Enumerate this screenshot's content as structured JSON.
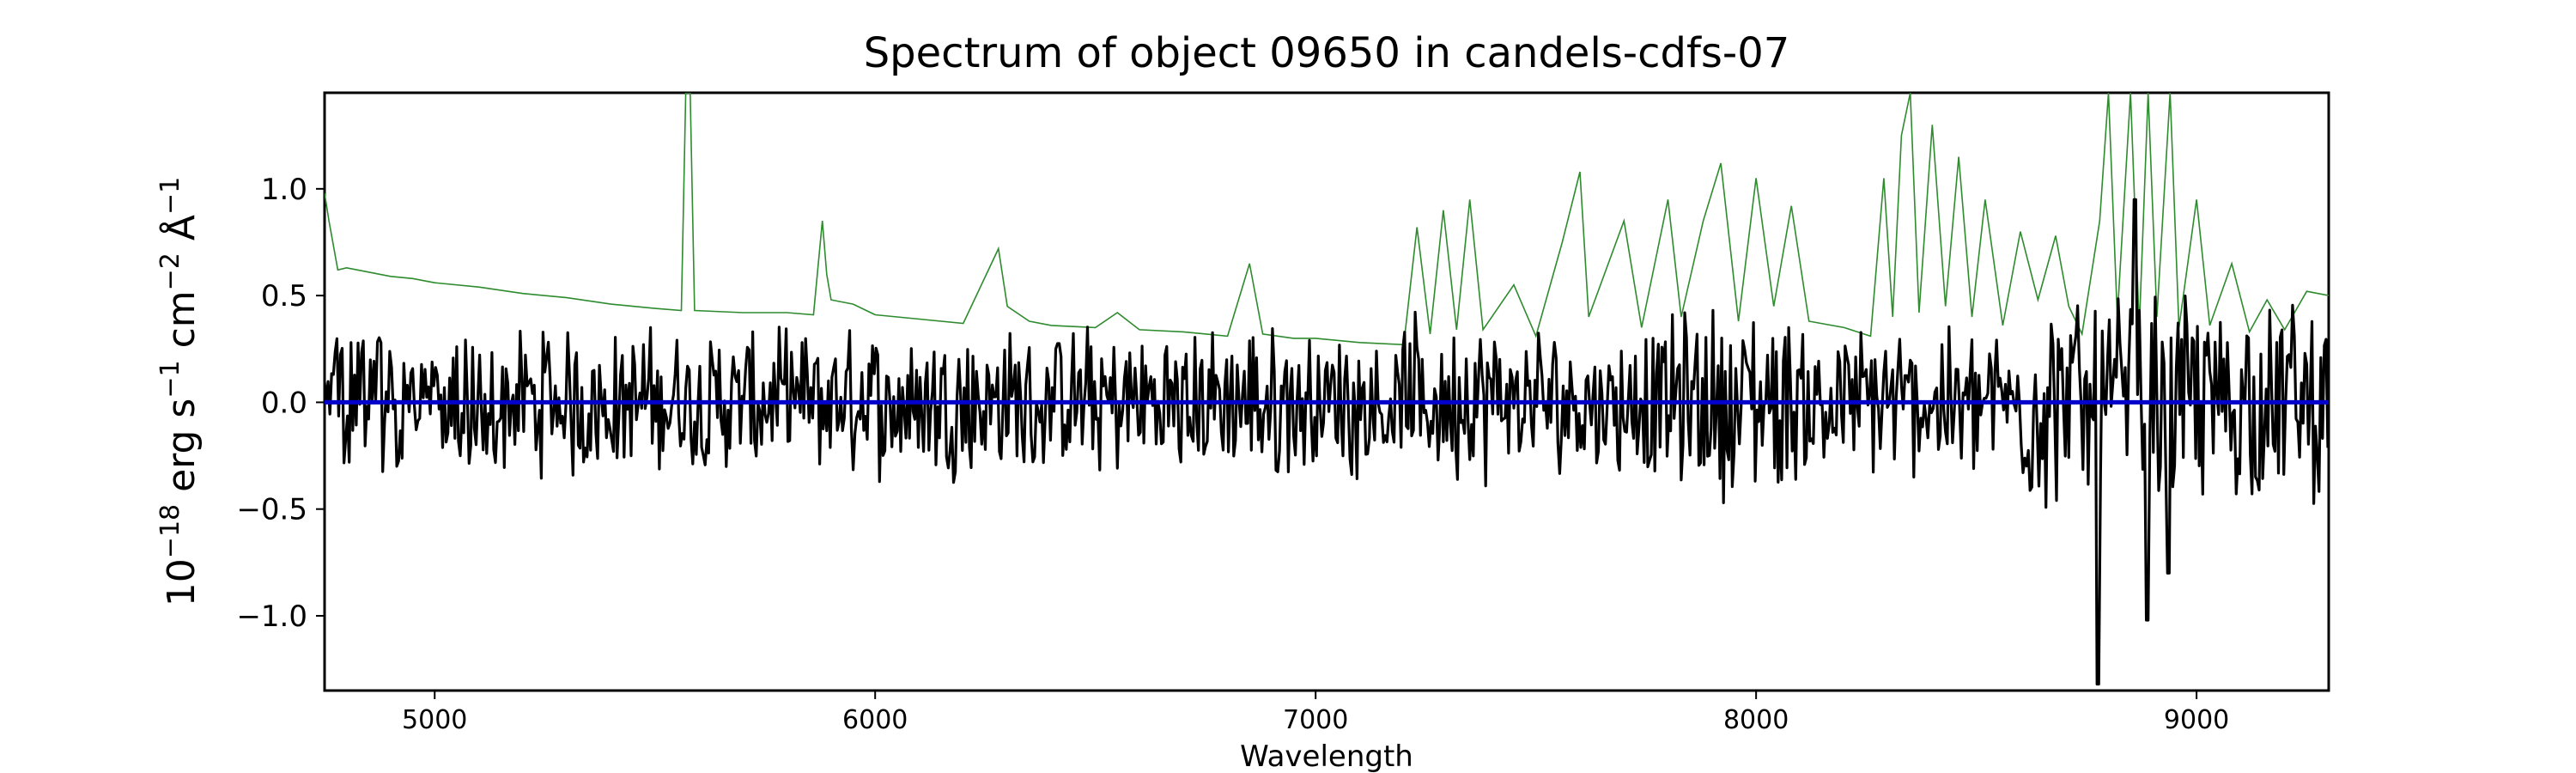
{
  "chart_data": {
    "type": "line",
    "title": "Spectrum of object 09650 in candels-cdfs-07",
    "xlabel": "Wavelength",
    "ylabel_base": "10",
    "ylabel_exp": "−18",
    "ylabel_unit1": " erg s",
    "ylabel_exp2": "−1",
    "ylabel_unit2": " cm",
    "ylabel_exp3": "−2",
    "ylabel_unit3": " Å",
    "ylabel_exp4": "−1",
    "xlim": [
      4750,
      9300
    ],
    "ylim": [
      -1.35,
      1.45
    ],
    "xticks": [
      5000,
      6000,
      7000,
      8000,
      9000
    ],
    "yticks": [
      -1.0,
      -0.5,
      0.0,
      0.5,
      1.0
    ],
    "ytick_labels": [
      "−1.0",
      "−0.5",
      "0.0",
      "0.5",
      "1.0"
    ],
    "series": [
      {
        "role": "noise",
        "color": "#2e8b2e",
        "points": [
          [
            4750,
            0.98
          ],
          [
            4760,
            0.85
          ],
          [
            4780,
            0.62
          ],
          [
            4800,
            0.63
          ],
          [
            4850,
            0.61
          ],
          [
            4900,
            0.59
          ],
          [
            4950,
            0.58
          ],
          [
            5000,
            0.56
          ],
          [
            5100,
            0.54
          ],
          [
            5200,
            0.51
          ],
          [
            5300,
            0.49
          ],
          [
            5400,
            0.46
          ],
          [
            5500,
            0.44
          ],
          [
            5560,
            0.43
          ],
          [
            5570,
            1.45
          ],
          [
            5580,
            1.45
          ],
          [
            5590,
            0.43
          ],
          [
            5700,
            0.42
          ],
          [
            5800,
            0.42
          ],
          [
            5860,
            0.41
          ],
          [
            5880,
            0.85
          ],
          [
            5890,
            0.6
          ],
          [
            5900,
            0.48
          ],
          [
            5950,
            0.46
          ],
          [
            6000,
            0.41
          ],
          [
            6100,
            0.39
          ],
          [
            6200,
            0.37
          ],
          [
            6280,
            0.72
          ],
          [
            6300,
            0.45
          ],
          [
            6350,
            0.38
          ],
          [
            6400,
            0.36
          ],
          [
            6500,
            0.35
          ],
          [
            6550,
            0.42
          ],
          [
            6600,
            0.34
          ],
          [
            6700,
            0.33
          ],
          [
            6800,
            0.31
          ],
          [
            6850,
            0.65
          ],
          [
            6880,
            0.32
          ],
          [
            6950,
            0.3
          ],
          [
            7000,
            0.3
          ],
          [
            7100,
            0.28
          ],
          [
            7200,
            0.27
          ],
          [
            7230,
            0.82
          ],
          [
            7260,
            0.32
          ],
          [
            7290,
            0.9
          ],
          [
            7320,
            0.34
          ],
          [
            7350,
            0.95
          ],
          [
            7380,
            0.34
          ],
          [
            7450,
            0.55
          ],
          [
            7500,
            0.31
          ],
          [
            7560,
            0.75
          ],
          [
            7600,
            1.08
          ],
          [
            7620,
            0.4
          ],
          [
            7700,
            0.85
          ],
          [
            7740,
            0.35
          ],
          [
            7800,
            0.95
          ],
          [
            7830,
            0.4
          ],
          [
            7880,
            0.85
          ],
          [
            7920,
            1.12
          ],
          [
            7960,
            0.38
          ],
          [
            8000,
            1.05
          ],
          [
            8040,
            0.45
          ],
          [
            8080,
            0.92
          ],
          [
            8120,
            0.38
          ],
          [
            8200,
            0.35
          ],
          [
            8260,
            0.31
          ],
          [
            8290,
            1.05
          ],
          [
            8310,
            0.4
          ],
          [
            8330,
            1.25
          ],
          [
            8350,
            1.45
          ],
          [
            8370,
            0.42
          ],
          [
            8400,
            1.3
          ],
          [
            8430,
            0.45
          ],
          [
            8460,
            1.15
          ],
          [
            8490,
            0.4
          ],
          [
            8520,
            0.95
          ],
          [
            8560,
            0.36
          ],
          [
            8600,
            0.8
          ],
          [
            8640,
            0.48
          ],
          [
            8680,
            0.78
          ],
          [
            8710,
            0.45
          ],
          [
            8740,
            0.32
          ],
          [
            8780,
            0.85
          ],
          [
            8800,
            1.45
          ],
          [
            8820,
            0.4
          ],
          [
            8850,
            1.45
          ],
          [
            8870,
            0.35
          ],
          [
            8890,
            1.45
          ],
          [
            8910,
            0.4
          ],
          [
            8940,
            1.45
          ],
          [
            8960,
            0.35
          ],
          [
            9000,
            0.95
          ],
          [
            9030,
            0.36
          ],
          [
            9080,
            0.65
          ],
          [
            9120,
            0.33
          ],
          [
            9160,
            0.48
          ],
          [
            9200,
            0.34
          ],
          [
            9250,
            0.52
          ],
          [
            9300,
            0.5
          ]
        ]
      },
      {
        "role": "zero",
        "color": "#0000cc",
        "points": [
          [
            4750,
            0.0
          ],
          [
            9300,
            0.0
          ]
        ]
      }
    ],
    "flux_color": "#000000"
  }
}
